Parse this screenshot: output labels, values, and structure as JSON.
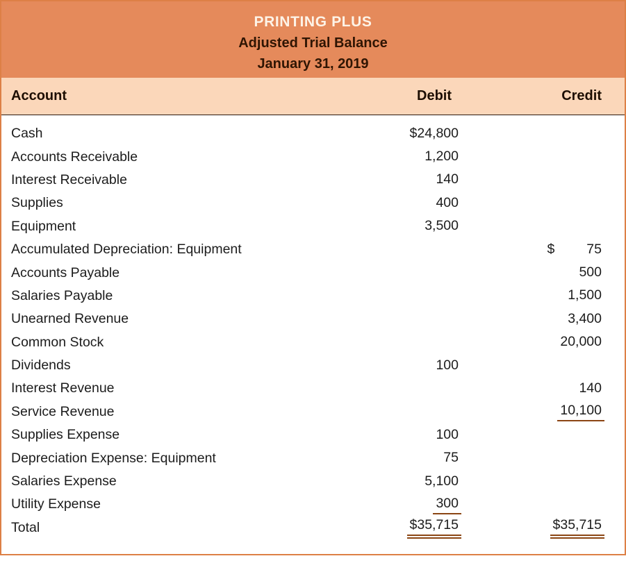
{
  "header": {
    "company": "PRINTING PLUS",
    "statement": "Adjusted Trial Balance",
    "date": "January 31, 2019"
  },
  "columns": {
    "account": "Account",
    "debit": "Debit",
    "credit": "Credit"
  },
  "rows": [
    {
      "account": "Cash",
      "debit": "$24,800"
    },
    {
      "account": "Accounts Receivable",
      "debit": "1,200"
    },
    {
      "account": "Interest Receivable",
      "debit": "140"
    },
    {
      "account": "Supplies",
      "debit": "400"
    },
    {
      "account": "Equipment",
      "debit": "3,500"
    },
    {
      "account": "Accumulated Depreciation: Equipment",
      "credit": "75",
      "credit_symbol": "$"
    },
    {
      "account": "Accounts Payable",
      "credit": "500"
    },
    {
      "account": "Salaries Payable",
      "credit": "1,500"
    },
    {
      "account": "Unearned Revenue",
      "credit": "3,400"
    },
    {
      "account": "Common Stock",
      "credit": "20,000"
    },
    {
      "account": "Dividends",
      "debit": "100"
    },
    {
      "account": "Interest Revenue",
      "credit": "140"
    },
    {
      "account": "Service Revenue",
      "credit": "10,100",
      "credit_rule": "single"
    },
    {
      "account": "Supplies Expense",
      "debit": "100"
    },
    {
      "account": "Depreciation Expense: Equipment",
      "debit": "75"
    },
    {
      "account": "Salaries Expense",
      "debit": "5,100"
    },
    {
      "account": "Utility Expense",
      "debit": "300",
      "debit_rule": "single"
    },
    {
      "account": "Total",
      "debit": "$35,715",
      "debit_rule": "double",
      "credit": "$35,715",
      "credit_rule": "double"
    }
  ],
  "colors": {
    "header_bg": "#E58A5B",
    "band_bg": "#FBD7BA",
    "border": "#DD8046",
    "rule": "#8B4513",
    "title_text": "#FDF3E7",
    "subtitle_text": "#2F1503"
  }
}
